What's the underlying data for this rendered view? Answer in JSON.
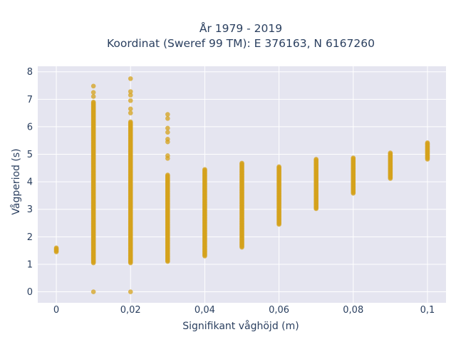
{
  "chart_data": {
    "type": "scatter",
    "title_line1": "År 1979 - 2019",
    "title_line2": "Koordinat (Sweref 99 TM): E 376163, N 6167260",
    "xlabel": "Signifikant våghöjd (m)",
    "ylabel": "Vågperiod (s)",
    "xlim": [
      -0.005,
      0.105
    ],
    "ylim": [
      -0.4,
      8.2
    ],
    "x_ticks": [
      0,
      0.02,
      0.04,
      0.06,
      0.08,
      0.1
    ],
    "x_tick_labels": [
      "0",
      "0,02",
      "0,04",
      "0,06",
      "0,08",
      "0,1"
    ],
    "y_ticks": [
      0,
      1,
      2,
      3,
      4,
      5,
      6,
      7,
      8
    ],
    "y_tick_labels": [
      "0",
      "1",
      "2",
      "3",
      "4",
      "5",
      "6",
      "7",
      "8"
    ],
    "grid": true,
    "marker_color": "#d4a21c",
    "background_color": "#e5e5f0",
    "grid_color": "#ffffff",
    "series": [
      {
        "columns": [
          {
            "x": 0.0,
            "y_min": 1.45,
            "y_max": 1.62,
            "isolated": []
          },
          {
            "x": 0.01,
            "y_min": 1.05,
            "y_max": 6.9,
            "isolated": [
              0.0,
              7.1,
              7.25,
              7.48
            ]
          },
          {
            "x": 0.02,
            "y_min": 1.05,
            "y_max": 6.2,
            "isolated": [
              0.0,
              6.5,
              6.65,
              6.95,
              7.15,
              7.28,
              7.75
            ]
          },
          {
            "x": 0.03,
            "y_min": 1.1,
            "y_max": 4.25,
            "isolated": [
              4.85,
              4.95,
              5.45,
              5.55,
              5.8,
              5.95,
              6.3,
              6.45
            ]
          },
          {
            "x": 0.04,
            "y_min": 1.3,
            "y_max": 4.45,
            "isolated": []
          },
          {
            "x": 0.05,
            "y_min": 1.62,
            "y_max": 4.7,
            "isolated": []
          },
          {
            "x": 0.06,
            "y_min": 2.45,
            "y_max": 4.55,
            "isolated": []
          },
          {
            "x": 0.07,
            "y_min": 3.02,
            "y_max": 4.82,
            "isolated": []
          },
          {
            "x": 0.08,
            "y_min": 3.58,
            "y_max": 4.88,
            "isolated": []
          },
          {
            "x": 0.09,
            "y_min": 4.12,
            "y_max": 5.05,
            "isolated": []
          },
          {
            "x": 0.1,
            "y_min": 4.82,
            "y_max": 5.42,
            "isolated": []
          }
        ]
      }
    ]
  }
}
